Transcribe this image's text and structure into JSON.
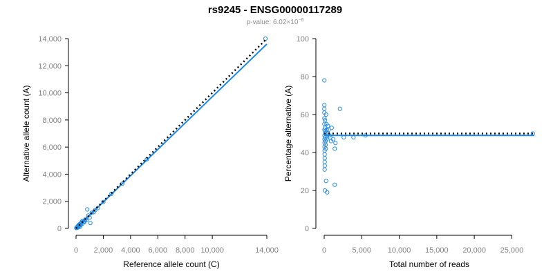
{
  "header": {
    "title": "rs9245 - ENSG00000117289",
    "pvalue_prefix": "p-value: 6.02×10",
    "pvalue_exp": "−6"
  },
  "colors": {
    "points": "#2a8de0",
    "fit": "#1a87e6",
    "reference": "#000000"
  },
  "chart_data": [
    {
      "type": "scatter",
      "xlabel": "Reference allele count (C)",
      "ylabel": "Alternative allele count (A)",
      "xlim": [
        0,
        14000
      ],
      "ylim": [
        0,
        14000
      ],
      "x_ticks": [
        0,
        2000,
        4000,
        6000,
        8000,
        10000,
        14000
      ],
      "x_tick_labels": [
        "0",
        "2,000",
        "4,000",
        "6,000",
        "8,000",
        "10,000",
        "14,000"
      ],
      "y_ticks": [
        0,
        2000,
        4000,
        6000,
        8000,
        10000,
        12000,
        14000
      ],
      "y_tick_labels": [
        "0",
        "2,000",
        "4,000",
        "6,000",
        "8,000",
        "10,000",
        "12,000",
        "14,000"
      ],
      "grid": false,
      "points": [
        [
          20,
          30
        ],
        [
          40,
          60
        ],
        [
          60,
          40
        ],
        [
          80,
          110
        ],
        [
          100,
          90
        ],
        [
          120,
          150
        ],
        [
          140,
          70
        ],
        [
          160,
          200
        ],
        [
          180,
          120
        ],
        [
          200,
          260
        ],
        [
          220,
          180
        ],
        [
          250,
          300
        ],
        [
          280,
          220
        ],
        [
          300,
          120
        ],
        [
          320,
          360
        ],
        [
          350,
          280
        ],
        [
          400,
          430
        ],
        [
          420,
          500
        ],
        [
          450,
          330
        ],
        [
          500,
          560
        ],
        [
          550,
          470
        ],
        [
          600,
          450
        ],
        [
          650,
          600
        ],
        [
          700,
          680
        ],
        [
          780,
          620
        ],
        [
          820,
          1400
        ],
        [
          900,
          950
        ],
        [
          1000,
          800
        ],
        [
          1050,
          400
        ],
        [
          1150,
          1150
        ],
        [
          1300,
          1200
        ],
        [
          1400,
          1350
        ],
        [
          1600,
          1500
        ],
        [
          2000,
          1950
        ],
        [
          2600,
          2550
        ],
        [
          3400,
          3300
        ],
        [
          5200,
          5100
        ],
        [
          13900,
          14000
        ]
      ],
      "fit_line": {
        "x": [
          0,
          14000
        ],
        "y": [
          0,
          13600
        ]
      },
      "reference_line": {
        "x": [
          0,
          13900
        ],
        "y": [
          0,
          13900
        ]
      }
    },
    {
      "type": "scatter",
      "xlabel": "Total number of reads",
      "ylabel": "Percentage alternative (A)",
      "xlim": [
        0,
        28000
      ],
      "ylim": [
        0,
        100
      ],
      "x_ticks": [
        0,
        5000,
        10000,
        15000,
        20000,
        25000
      ],
      "x_tick_labels": [
        "0",
        "5,000",
        "10,000",
        "15,000",
        "20,000",
        "25,000"
      ],
      "y_ticks": [
        0,
        20,
        40,
        60,
        80,
        100
      ],
      "y_tick_labels": [
        "0",
        "20",
        "40",
        "60",
        "80",
        "100"
      ],
      "grid": false,
      "points": [
        [
          20,
          78
        ],
        [
          20,
          65
        ],
        [
          20,
          63
        ],
        [
          25,
          61
        ],
        [
          30,
          58
        ],
        [
          30,
          55
        ],
        [
          40,
          52
        ],
        [
          40,
          49
        ],
        [
          45,
          47
        ],
        [
          50,
          45
        ],
        [
          50,
          43
        ],
        [
          60,
          41
        ],
        [
          60,
          39
        ],
        [
          70,
          37
        ],
        [
          70,
          35
        ],
        [
          80,
          33
        ],
        [
          60,
          31
        ],
        [
          100,
          20
        ],
        [
          100,
          57
        ],
        [
          120,
          53
        ],
        [
          150,
          51
        ],
        [
          150,
          50
        ],
        [
          150,
          48
        ],
        [
          180,
          46
        ],
        [
          200,
          44
        ],
        [
          200,
          42
        ],
        [
          250,
          60
        ],
        [
          250,
          25
        ],
        [
          300,
          55
        ],
        [
          300,
          47
        ],
        [
          350,
          52
        ],
        [
          400,
          19
        ],
        [
          500,
          54
        ],
        [
          500,
          50
        ],
        [
          600,
          52
        ],
        [
          700,
          49
        ],
        [
          800,
          48
        ],
        [
          900,
          46
        ],
        [
          1000,
          53
        ],
        [
          1200,
          47
        ],
        [
          1400,
          42
        ],
        [
          1500,
          45
        ],
        [
          1400,
          23
        ],
        [
          2100,
          63
        ],
        [
          2600,
          48
        ],
        [
          3900,
          48
        ],
        [
          5500,
          49
        ],
        [
          27800,
          50
        ]
      ],
      "fit_line": {
        "x": [
          0,
          28000
        ],
        "y": [
          49,
          49
        ]
      },
      "reference_line": {
        "x": [
          0,
          28000
        ],
        "y": [
          50,
          50
        ]
      }
    }
  ]
}
